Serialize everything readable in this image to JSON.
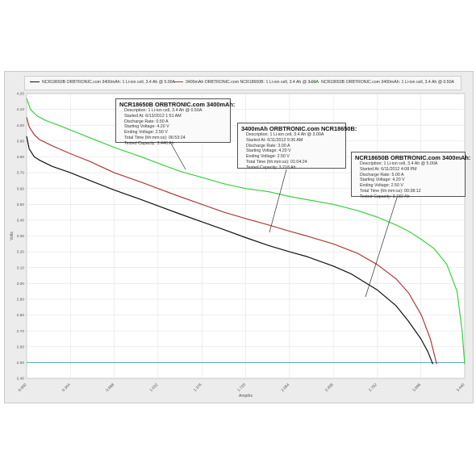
{
  "chart_data": {
    "type": "line",
    "xlabel": "Ampths",
    "ylabel": "Volts",
    "xlim": [
      0,
      3.44
    ],
    "ylim": [
      2.4,
      4.2
    ],
    "x_ticks": [
      "0.000",
      "0.344",
      "0.688",
      "1.032",
      "1.376",
      "1.720",
      "2.064",
      "2.408",
      "2.752",
      "3.096",
      "3.440"
    ],
    "y_ticks": [
      "2.40",
      "2.50",
      "2.60",
      "2.70",
      "2.80",
      "2.90",
      "3.00",
      "3.10",
      "3.20",
      "3.30",
      "3.40",
      "3.50",
      "3.60",
      "3.70",
      "3.80",
      "3.90",
      "4.00",
      "4.10",
      "4.20"
    ],
    "grid": true,
    "legend_position": "top",
    "cutoff_line": {
      "y": 2.5,
      "color": "#4aa8a8"
    },
    "series": [
      {
        "name": "NCR18650B ORBTRONIC.com 3400mAh: 1 Li-ion cell, 3.4 Ah @ 5.00A",
        "color": "#111111",
        "x": [
          0,
          0.02,
          0.06,
          0.1,
          0.2,
          0.344,
          0.5,
          0.688,
          0.9,
          1.032,
          1.2,
          1.376,
          1.55,
          1.72,
          1.9,
          2.064,
          2.2,
          2.408,
          2.55,
          2.752,
          2.9,
          3.0,
          3.096,
          3.15,
          3.19
        ],
        "y": [
          3.93,
          3.85,
          3.8,
          3.78,
          3.74,
          3.7,
          3.65,
          3.59,
          3.53,
          3.49,
          3.44,
          3.39,
          3.34,
          3.29,
          3.24,
          3.2,
          3.17,
          3.11,
          3.06,
          2.96,
          2.86,
          2.76,
          2.65,
          2.57,
          2.49
        ]
      },
      {
        "name": "3400mAh ORBTRONIC.com NCR18650B: 1 Li-ion cell, 3.4 Ah @ 3.00A",
        "color": "#b03a3a",
        "x": [
          0,
          0.02,
          0.06,
          0.1,
          0.2,
          0.344,
          0.5,
          0.688,
          0.9,
          1.032,
          1.2,
          1.376,
          1.55,
          1.72,
          1.9,
          2.064,
          2.2,
          2.408,
          2.6,
          2.752,
          2.9,
          3.0,
          3.1,
          3.17,
          3.22
        ],
        "y": [
          4.05,
          3.99,
          3.94,
          3.91,
          3.87,
          3.82,
          3.77,
          3.7,
          3.64,
          3.6,
          3.55,
          3.5,
          3.45,
          3.41,
          3.37,
          3.33,
          3.3,
          3.25,
          3.19,
          3.12,
          3.03,
          2.94,
          2.8,
          2.65,
          2.49
        ]
      },
      {
        "name": "NCR18650B ORBTRONIC.com 3400mAh: 1 Li-ion cell, 3.4 Ah @ 0.50A",
        "color": "#39d13c",
        "x": [
          0,
          0.03,
          0.08,
          0.15,
          0.25,
          0.344,
          0.5,
          0.688,
          0.9,
          1.032,
          1.2,
          1.376,
          1.55,
          1.72,
          1.9,
          2.064,
          2.2,
          2.408,
          2.6,
          2.752,
          2.9,
          3.0,
          3.096,
          3.2,
          3.3,
          3.38,
          3.42,
          3.44
        ],
        "y": [
          4.17,
          4.1,
          4.06,
          4.03,
          4.0,
          3.97,
          3.92,
          3.86,
          3.8,
          3.76,
          3.71,
          3.67,
          3.63,
          3.6,
          3.58,
          3.55,
          3.53,
          3.5,
          3.46,
          3.42,
          3.37,
          3.33,
          3.28,
          3.22,
          3.12,
          2.95,
          2.7,
          2.49
        ]
      }
    ]
  },
  "callouts": [
    {
      "title": "NCR18650B ORBTRONIC.com 3400mAh:",
      "lines": [
        "Description: 1 Li-ion cell, 3.4 Ah @ 0.50A",
        "Started At: 6/13/2012 1:51 AM",
        "Discharge Rate: 0.50 A",
        "Starting Voltage: 4.20 V",
        "Ending Voltage: 2.50 V",
        "Total Time (hh:mm:ss): 06:53:24",
        "Tested Capacity: 3.446 Ah"
      ]
    },
    {
      "title": "3400mAh ORBTRONIC.com NCR18650B:",
      "lines": [
        "Description: 1 Li-ion cell, 3.4 Ah @ 3.00A",
        "Started At: 6/11/2012 9:36 AM",
        "Discharge Rate: 3.00 A",
        "Starting Voltage: 4.20 V",
        "Ending Voltage: 2.50 V",
        "Total Time (hh:mm:ss): 01:04:24",
        "Tested Capacity: 3.218 Ah"
      ]
    },
    {
      "title": "NCR18650B ORBTRONIC.com 3400mAh:",
      "lines": [
        "Description: 1 Li-ion cell, 3.4 Ah @ 5.00A",
        "Started At: 6/11/2012 4:08 PM",
        "Discharge Rate: 5.00 A",
        "Starting Voltage: 4.20 V",
        "Ending Voltage: 2.50 V",
        "Total Time (hh:mm:ss): 00:38:12",
        "Tested Capacity: 3.182 Ah"
      ]
    }
  ]
}
